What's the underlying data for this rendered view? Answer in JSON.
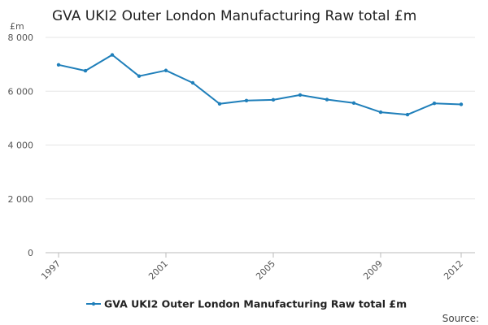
{
  "chart_data": {
    "type": "line",
    "title": "GVA UKI2 Outer London Manufacturing Raw total £m",
    "unit_label": "£m",
    "x": [
      1997,
      1998,
      1999,
      2000,
      2001,
      2002,
      2003,
      2004,
      2005,
      2006,
      2007,
      2008,
      2009,
      2010,
      2011,
      2012
    ],
    "x_tick_labels": [
      "1997",
      "2001",
      "2005",
      "2009",
      "2012"
    ],
    "x_tick_values": [
      1997,
      2001,
      2005,
      2009,
      2012
    ],
    "xlim": [
      1997,
      2012
    ],
    "y_tick_labels": [
      "0",
      "2 000",
      "4 000",
      "6 000",
      "8 000"
    ],
    "y_tick_values": [
      0,
      2000,
      4000,
      6000,
      8000
    ],
    "ylim": [
      0,
      8000
    ],
    "grid": true,
    "legend_position": "bottom",
    "series": [
      {
        "name": "GVA UKI2 Outer London Manufacturing Raw total £m",
        "color": "#1f7fba",
        "values": [
          6980,
          6760,
          7350,
          6560,
          6770,
          6310,
          5530,
          5650,
          5680,
          5860,
          5690,
          5560,
          5220,
          5130,
          5550,
          5510
        ]
      }
    ]
  },
  "source_label": "Source:"
}
